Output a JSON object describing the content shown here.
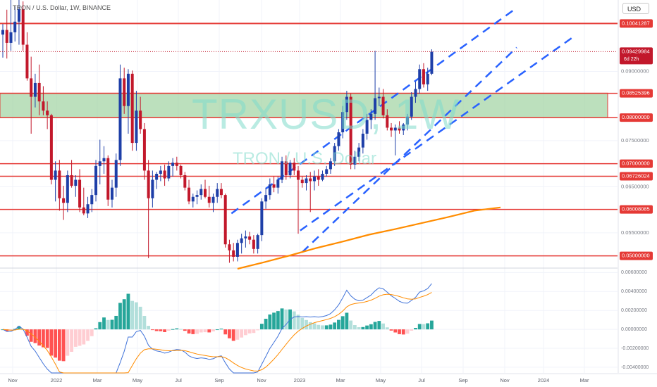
{
  "header": {
    "symbol_line": "TRON / U.S. Dollar, 1W, BINANCE"
  },
  "currency_selector": {
    "label": "USD"
  },
  "watermark": {
    "main": "TRXUSD, 1W",
    "sub": "TRON / U.S. Dollar"
  },
  "last_price": {
    "value": "0.09429984",
    "countdown": "6d 22h"
  },
  "colors": {
    "up": "#1e3fa8",
    "down": "#c2182b",
    "level": "#e53935",
    "zone": "#a5d6a7",
    "trend": "#2962ff",
    "ma": "#ff8c00",
    "macd": "#3f72d9",
    "signal": "#ff8c00",
    "hist_up_strong": "#26a69a",
    "hist_up_weak": "#b2dfdb",
    "hist_down_strong": "#ff5252",
    "hist_down_weak": "#ffcdd2"
  },
  "chart_data": [
    {
      "type": "candlestick",
      "y_ticks": [
        "0.09000000",
        "0.07500000",
        "0.06500000",
        "0.05500000"
      ],
      "ylim": [
        0.0475,
        0.1055
      ],
      "x_tick_labels": [
        "Nov",
        "2022",
        "Mar",
        "May",
        "Jul",
        "Sep",
        "Nov",
        "2023",
        "Mar",
        "May",
        "Jul",
        "Sep",
        "Nov",
        "2024",
        "Mar"
      ],
      "horizontal_levels": [
        "0.10041287",
        "0.08525396",
        "0.08000000",
        "0.07000000",
        "0.06726024",
        "0.06008085",
        "0.05000000"
      ],
      "support_zone": [
        0.08,
        0.0853
      ],
      "ohlc": [
        [
          0.098,
          0.1003,
          0.093,
          0.099
        ],
        [
          0.099,
          0.1034,
          0.0928,
          0.0962
        ],
        [
          0.0962,
          0.1065,
          0.0945,
          0.0985
        ],
        [
          0.0985,
          0.1041,
          0.0965,
          0.1008
        ],
        [
          0.1008,
          0.1055,
          0.0958,
          0.1035
        ],
        [
          0.1035,
          0.1052,
          0.0945,
          0.0958
        ],
        [
          0.0958,
          0.0985,
          0.088,
          0.0885
        ],
        [
          0.0885,
          0.0932,
          0.0765,
          0.0845
        ],
        [
          0.0845,
          0.0895,
          0.0822,
          0.0875
        ],
        [
          0.0875,
          0.0915,
          0.0805,
          0.0835
        ],
        [
          0.0835,
          0.0868,
          0.0805,
          0.0815
        ],
        [
          0.0815,
          0.0835,
          0.0775,
          0.0805
        ],
        [
          0.0805,
          0.0808,
          0.0655,
          0.0665
        ],
        [
          0.0665,
          0.0705,
          0.0618,
          0.0685
        ],
        [
          0.0685,
          0.0708,
          0.0598,
          0.0625
        ],
        [
          0.0625,
          0.0652,
          0.0578,
          0.0615
        ],
        [
          0.0615,
          0.0685,
          0.0595,
          0.0675
        ],
        [
          0.0675,
          0.0708,
          0.0648,
          0.0652
        ],
        [
          0.0652,
          0.0675,
          0.0628,
          0.0665
        ],
        [
          0.0665,
          0.0688,
          0.0595,
          0.0605
        ],
        [
          0.0605,
          0.0648,
          0.0588,
          0.0592
        ],
        [
          0.0592,
          0.0628,
          0.0582,
          0.0612
        ],
        [
          0.0612,
          0.0645,
          0.0595,
          0.0632
        ],
        [
          0.0632,
          0.0708,
          0.0618,
          0.0695
        ],
        [
          0.0695,
          0.0752,
          0.0655,
          0.0705
        ],
        [
          0.0705,
          0.0738,
          0.0678,
          0.0712
        ],
        [
          0.0712,
          0.0718,
          0.0608,
          0.0622
        ],
        [
          0.0622,
          0.0665,
          0.0605,
          0.0648
        ],
        [
          0.0648,
          0.0722,
          0.0628,
          0.0708
        ],
        [
          0.0708,
          0.0915,
          0.0695,
          0.0885
        ],
        [
          0.0885,
          0.0908,
          0.0808,
          0.0825
        ],
        [
          0.0825,
          0.0905,
          0.0765,
          0.0895
        ],
        [
          0.0895,
          0.0902,
          0.0728,
          0.0745
        ],
        [
          0.0745,
          0.0858,
          0.0728,
          0.0815
        ],
        [
          0.0815,
          0.0845,
          0.0765,
          0.0775
        ],
        [
          0.0775,
          0.0788,
          0.0665,
          0.0685
        ],
        [
          0.0685,
          0.0708,
          0.0495,
          0.0625
        ],
        [
          0.0625,
          0.0685,
          0.0605,
          0.0665
        ],
        [
          0.0665,
          0.0682,
          0.0645,
          0.0678
        ],
        [
          0.0678,
          0.0695,
          0.0662,
          0.0685
        ],
        [
          0.0685,
          0.0698,
          0.0652,
          0.0668
        ],
        [
          0.0668,
          0.0705,
          0.0662,
          0.0695
        ],
        [
          0.0695,
          0.0712,
          0.0672,
          0.0702
        ],
        [
          0.0702,
          0.0715,
          0.0685,
          0.0695
        ],
        [
          0.0695,
          0.0698,
          0.0668,
          0.0675
        ],
        [
          0.0675,
          0.0682,
          0.0642,
          0.0648
        ],
        [
          0.0648,
          0.0665,
          0.0612,
          0.0618
        ],
        [
          0.0618,
          0.0635,
          0.0605,
          0.0628
        ],
        [
          0.0628,
          0.0642,
          0.0612,
          0.0632
        ],
        [
          0.0632,
          0.0655,
          0.0622,
          0.0645
        ],
        [
          0.0645,
          0.0665,
          0.0625,
          0.0628
        ],
        [
          0.0628,
          0.0652,
          0.0605,
          0.0615
        ],
        [
          0.0615,
          0.0635,
          0.0595,
          0.0628
        ],
        [
          0.0628,
          0.0658,
          0.0615,
          0.0645
        ],
        [
          0.0645,
          0.0658,
          0.0625,
          0.0632
        ],
        [
          0.0632,
          0.0635,
          0.0518,
          0.0525
        ],
        [
          0.0525,
          0.0535,
          0.0485,
          0.0512
        ],
        [
          0.0512,
          0.0528,
          0.0488,
          0.0498
        ],
        [
          0.0498,
          0.0535,
          0.0488,
          0.0528
        ],
        [
          0.0528,
          0.0548,
          0.0505,
          0.0538
        ],
        [
          0.0538,
          0.0555,
          0.0518,
          0.0542
        ],
        [
          0.0542,
          0.0552,
          0.0525,
          0.0535
        ],
        [
          0.0535,
          0.0545,
          0.0505,
          0.0515
        ],
        [
          0.0515,
          0.0548,
          0.0505,
          0.0545
        ],
        [
          0.0545,
          0.0625,
          0.0532,
          0.0618
        ],
        [
          0.0618,
          0.0648,
          0.0602,
          0.0632
        ],
        [
          0.0632,
          0.0668,
          0.0622,
          0.0655
        ],
        [
          0.0655,
          0.0672,
          0.0638,
          0.0648
        ],
        [
          0.0648,
          0.0672,
          0.0635,
          0.0665
        ],
        [
          0.0665,
          0.0715,
          0.0658,
          0.0705
        ],
        [
          0.0705,
          0.0718,
          0.0665,
          0.0675
        ],
        [
          0.0675,
          0.0708,
          0.0668,
          0.0702
        ],
        [
          0.0702,
          0.0712,
          0.0675,
          0.0685
        ],
        [
          0.0685,
          0.0695,
          0.0548,
          0.0665
        ],
        [
          0.0665,
          0.0672,
          0.0648,
          0.0658
        ],
        [
          0.0658,
          0.0675,
          0.0642,
          0.0668
        ],
        [
          0.0668,
          0.0682,
          0.0595,
          0.0662
        ],
        [
          0.0662,
          0.0685,
          0.0642,
          0.0672
        ],
        [
          0.0672,
          0.0688,
          0.0652,
          0.0665
        ],
        [
          0.0665,
          0.0685,
          0.0662,
          0.0678
        ],
        [
          0.0678,
          0.0695,
          0.0672,
          0.0688
        ],
        [
          0.0688,
          0.0712,
          0.0678,
          0.0705
        ],
        [
          0.0705,
          0.0745,
          0.0695,
          0.0738
        ],
        [
          0.0738,
          0.0775,
          0.0728,
          0.0768
        ],
        [
          0.0768,
          0.0825,
          0.0755,
          0.0812
        ],
        [
          0.0812,
          0.0858,
          0.0795,
          0.0845
        ],
        [
          0.0845,
          0.0852,
          0.0688,
          0.0698
        ],
        [
          0.0698,
          0.0728,
          0.0688,
          0.0715
        ],
        [
          0.0715,
          0.0745,
          0.0705,
          0.0735
        ],
        [
          0.0735,
          0.0775,
          0.0722,
          0.0765
        ],
        [
          0.0765,
          0.0808,
          0.0752,
          0.0795
        ],
        [
          0.0795,
          0.0818,
          0.0775,
          0.0808
        ],
        [
          0.0808,
          0.0945,
          0.0795,
          0.0842
        ],
        [
          0.0842,
          0.0865,
          0.0825,
          0.0845
        ],
        [
          0.0845,
          0.0862,
          0.0798,
          0.0805
        ],
        [
          0.0805,
          0.0818,
          0.0772,
          0.0778
        ],
        [
          0.0778,
          0.0788,
          0.0758,
          0.0772
        ],
        [
          0.0772,
          0.0785,
          0.0718,
          0.0778
        ],
        [
          0.0778,
          0.0792,
          0.0765,
          0.0772
        ],
        [
          0.0772,
          0.0788,
          0.0762,
          0.0785
        ],
        [
          0.0785,
          0.0808,
          0.0772,
          0.0802
        ],
        [
          0.0802,
          0.0855,
          0.0795,
          0.0845
        ],
        [
          0.0845,
          0.0878,
          0.0832,
          0.0862
        ],
        [
          0.0862,
          0.0915,
          0.0852,
          0.0905
        ],
        [
          0.0905,
          0.0918,
          0.0865,
          0.0872
        ],
        [
          0.0872,
          0.0908,
          0.0858,
          0.0895
        ],
        [
          0.0895,
          0.0948,
          0.0892,
          0.0943
        ]
      ],
      "series": [
        {
          "name": "",
          "type": "ma",
          "values": [
            0.0472,
            0.0486,
            0.0501,
            0.0517,
            0.0531,
            0.0546,
            0.0558,
            0.0571,
            0.0584,
            0.0598,
            0.0605
          ]
        }
      ]
    },
    {
      "type": "macd",
      "y_ticks": [
        "0.00600000",
        "0.00400000",
        "0.00200000",
        "0.00000000",
        "-0.00200000",
        "-0.00400000"
      ],
      "ylim": [
        -0.0046,
        0.0064
      ]
    }
  ]
}
